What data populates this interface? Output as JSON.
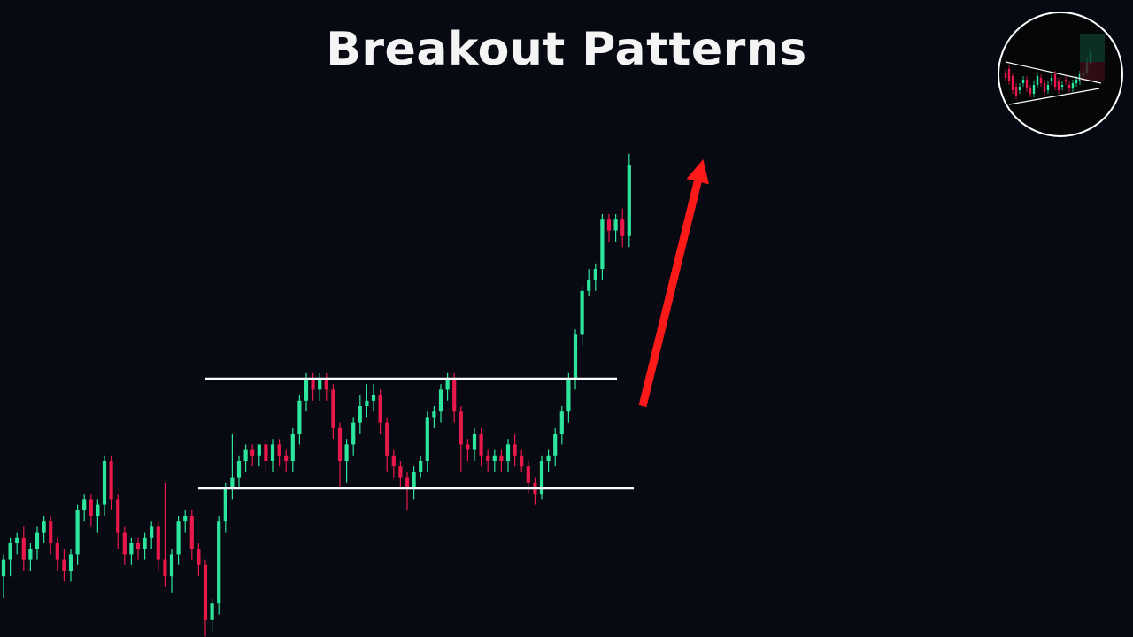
{
  "title": "Breakout Patterns",
  "colors": {
    "up": "#2ee59d",
    "down": "#e8184a",
    "arrow": "#ff1a1a",
    "line": "#ffffff",
    "background": "#070a12",
    "title": "#f4f4f4"
  },
  "chart_data": {
    "type": "candlestick",
    "title": "Breakout Patterns",
    "xlabel": "",
    "ylabel": "",
    "axes_visible": false,
    "grid": false,
    "ylim": [
      0,
      100
    ],
    "range": {
      "resistance": 50,
      "support": 30
    },
    "breakout_arrow": {
      "direction": "up",
      "from": [
        95,
        45
      ],
      "to": [
        104,
        90
      ]
    },
    "candles": [
      [
        14,
        17,
        12,
        18,
        10
      ],
      [
        17,
        20,
        16,
        21,
        14
      ],
      [
        20,
        21,
        19,
        22,
        18
      ],
      [
        21,
        17,
        16,
        23,
        15
      ],
      [
        17,
        19,
        16,
        20,
        15
      ],
      [
        19,
        22,
        18,
        23,
        17
      ],
      [
        22,
        24,
        21,
        25,
        20
      ],
      [
        24,
        20,
        19,
        25,
        18
      ],
      [
        20,
        17,
        16,
        21,
        15
      ],
      [
        17,
        15,
        14,
        19,
        13
      ],
      [
        15,
        18,
        14,
        19,
        13
      ],
      [
        18,
        26,
        17,
        27,
        16
      ],
      [
        26,
        28,
        25,
        29,
        24
      ],
      [
        28,
        25,
        24,
        29,
        23
      ],
      [
        25,
        27,
        24,
        28,
        22
      ],
      [
        27,
        35,
        26,
        36,
        25
      ],
      [
        35,
        28,
        27,
        36,
        26
      ],
      [
        28,
        22,
        21,
        29,
        19
      ],
      [
        22,
        18,
        17,
        23,
        16
      ],
      [
        18,
        20,
        17,
        21,
        16
      ],
      [
        20,
        19,
        18,
        21,
        17
      ],
      [
        19,
        21,
        18,
        22,
        17
      ],
      [
        21,
        23,
        20,
        24,
        19
      ],
      [
        23,
        17,
        16,
        24,
        15
      ],
      [
        17,
        14,
        13,
        31,
        12
      ],
      [
        14,
        18,
        13,
        19,
        11
      ],
      [
        18,
        24,
        17,
        25,
        16
      ],
      [
        24,
        25,
        23,
        26,
        22
      ],
      [
        25,
        19,
        18,
        26,
        17
      ],
      [
        19,
        16,
        15,
        20,
        14
      ],
      [
        16,
        6,
        5,
        17,
        3
      ],
      [
        6,
        9,
        5,
        10,
        4
      ],
      [
        9,
        24,
        8,
        25,
        7
      ],
      [
        24,
        30,
        23,
        31,
        22
      ],
      [
        30,
        32,
        29,
        40,
        28
      ],
      [
        32,
        35,
        31,
        36,
        30
      ],
      [
        35,
        37,
        34,
        38,
        33
      ],
      [
        37,
        36,
        35,
        38,
        34
      ],
      [
        36,
        38,
        35,
        38,
        34
      ],
      [
        38,
        35,
        34,
        39,
        33
      ],
      [
        35,
        38,
        34,
        39,
        33
      ],
      [
        38,
        36,
        35,
        39,
        34
      ],
      [
        36,
        35,
        34,
        37,
        33
      ],
      [
        35,
        40,
        34,
        41,
        33
      ],
      [
        40,
        46,
        39,
        47,
        38
      ],
      [
        46,
        50,
        45,
        51,
        44
      ],
      [
        50,
        48,
        47,
        51,
        46
      ],
      [
        48,
        50,
        47,
        51,
        46
      ],
      [
        50,
        48,
        47,
        51,
        46
      ],
      [
        48,
        41,
        40,
        49,
        39
      ],
      [
        41,
        35,
        34,
        42,
        30
      ],
      [
        35,
        38,
        34,
        39,
        31
      ],
      [
        38,
        42,
        37,
        43,
        36
      ],
      [
        42,
        45,
        41,
        47,
        40
      ],
      [
        45,
        46,
        44,
        49,
        43
      ],
      [
        46,
        47,
        45,
        49,
        44
      ],
      [
        47,
        42,
        41,
        48,
        40
      ],
      [
        42,
        36,
        35,
        43,
        33
      ],
      [
        36,
        34,
        33,
        37,
        32
      ],
      [
        34,
        32,
        31,
        35,
        30
      ],
      [
        32,
        30,
        29,
        33,
        26
      ],
      [
        30,
        33,
        29,
        34,
        28
      ],
      [
        33,
        35,
        32,
        36,
        32
      ],
      [
        35,
        43,
        34,
        44,
        33
      ],
      [
        43,
        44,
        42,
        45,
        41
      ],
      [
        44,
        48,
        43,
        49,
        42
      ],
      [
        48,
        50,
        47,
        51,
        46
      ],
      [
        50,
        44,
        43,
        51,
        42
      ],
      [
        44,
        38,
        37,
        45,
        33
      ],
      [
        38,
        37,
        36,
        39,
        35
      ],
      [
        37,
        40,
        36,
        41,
        35
      ],
      [
        40,
        36,
        35,
        41,
        34
      ],
      [
        36,
        35,
        34,
        37,
        33
      ],
      [
        35,
        36,
        34,
        37,
        33
      ],
      [
        36,
        35,
        34,
        37,
        33
      ],
      [
        35,
        38,
        34,
        39,
        33
      ],
      [
        38,
        36,
        35,
        40,
        34
      ],
      [
        36,
        34,
        33,
        37,
        33
      ],
      [
        34,
        31,
        30,
        35,
        29
      ],
      [
        31,
        29,
        28,
        32,
        27
      ],
      [
        29,
        35,
        28,
        36,
        28
      ],
      [
        35,
        36,
        34,
        37,
        33
      ],
      [
        36,
        40,
        35,
        41,
        34
      ],
      [
        40,
        44,
        39,
        45,
        38
      ],
      [
        44,
        50,
        43,
        51,
        42
      ],
      [
        50,
        58,
        49,
        59,
        48
      ],
      [
        58,
        66,
        57,
        67,
        56
      ],
      [
        66,
        68,
        67,
        70,
        65
      ],
      [
        68,
        70,
        67,
        71,
        66
      ],
      [
        70,
        79,
        69,
        80,
        68
      ],
      [
        79,
        77,
        76,
        80,
        75
      ],
      [
        77,
        79,
        76,
        80,
        75
      ],
      [
        79,
        76,
        75,
        81,
        74
      ],
      [
        76,
        89,
        75,
        91,
        74
      ]
    ]
  },
  "thumbnail": {
    "type": "candlestick",
    "pattern": "symmetrical-triangle-breakout"
  }
}
